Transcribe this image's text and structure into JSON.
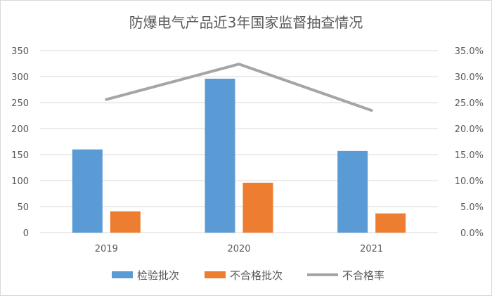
{
  "chart_data": {
    "type": "bar",
    "title": "防爆电气产品近3年国家监督抽查情况",
    "categories": [
      "2019",
      "2020",
      "2021"
    ],
    "series": [
      {
        "name": "检验批次",
        "type": "bar",
        "axis": "left",
        "color": "#5b9bd5",
        "values": [
          160,
          296,
          157
        ]
      },
      {
        "name": "不合格批次",
        "type": "bar",
        "axis": "left",
        "color": "#ed7d31",
        "values": [
          41,
          96,
          37
        ]
      },
      {
        "name": "不合格率",
        "type": "line",
        "axis": "right",
        "color": "#a5a5a5",
        "values": [
          25.6,
          32.4,
          23.5
        ]
      }
    ],
    "y_left": {
      "ylim": [
        0,
        350
      ],
      "ticks": [
        "0",
        "50",
        "100",
        "150",
        "200",
        "250",
        "300",
        "350"
      ]
    },
    "y_right": {
      "ylim": [
        0,
        35
      ],
      "ticks": [
        "0.0%",
        "5.0%",
        "10.0%",
        "15.0%",
        "20.0%",
        "25.0%",
        "30.0%",
        "35.0%"
      ]
    },
    "grid": true,
    "legend_position": "bottom"
  }
}
